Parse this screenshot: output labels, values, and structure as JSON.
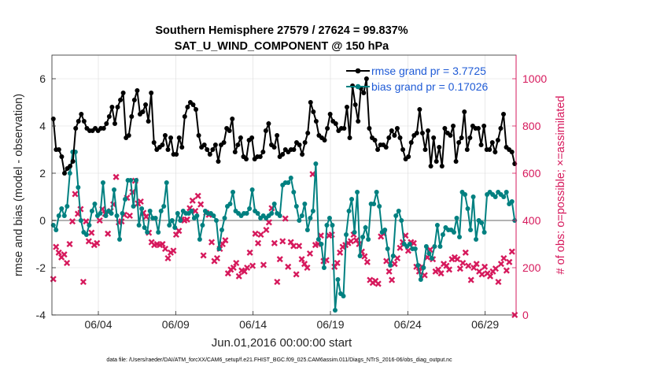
{
  "chart_data": {
    "type": "line",
    "title": "Southern Hemisphere 27579 / 27624 = 99.837%",
    "subtitle": "SAT_U_WIND_COMPONENT @ 150 hPa",
    "xlabel": "Jun.01,2016 00:00:00 start",
    "ylabel": "rmse and bias (model - observation)",
    "y2label": "# of obs: o=possible; ×=assimilated",
    "footer": "data file: /Users/raeder/DAI/ATM_forcXX/CAM6_setup/f.e21.FHIST_BGC.f09_025.CAM6assim.011/Diags_NTrS_2016-06/obs_diag_output.nc",
    "x_ticks": [
      {
        "label": "06/04",
        "day": 4
      },
      {
        "label": "06/09",
        "day": 9
      },
      {
        "label": "06/14",
        "day": 14
      },
      {
        "label": "06/19",
        "day": 19
      },
      {
        "label": "06/24",
        "day": 24
      },
      {
        "label": "06/29",
        "day": 29
      }
    ],
    "xlim_days": [
      1.0,
      31.0
    ],
    "ylim": [
      -4,
      7
    ],
    "y_ticks": [
      "-4",
      "-2",
      "0",
      "2",
      "4",
      "6"
    ],
    "y2lim": [
      0,
      1100
    ],
    "y2_ticks": [
      "0",
      "200",
      "400",
      "600",
      "800",
      "1000"
    ],
    "grid": true,
    "legend_placement": "top-right",
    "colors": {
      "rmse": "#000000",
      "bias": "#008080",
      "obs": "#d6195c",
      "zero_line": "#b3b3b3"
    },
    "series": [
      {
        "name": "rmse grand pr = 3.7725",
        "axis": "left",
        "values": [
          4.3,
          3.0,
          3.0,
          2.7,
          2.0,
          2.2,
          2.3,
          2.5,
          3.9,
          4.2,
          4.5,
          4.2,
          3.9,
          3.8,
          3.8,
          3.9,
          3.8,
          3.9,
          3.9,
          4.1,
          4.4,
          4.8,
          4.1,
          4.8,
          5.1,
          5.4,
          3.5,
          3.6,
          4.4,
          5.1,
          5.5,
          4.5,
          4.6,
          4.9,
          4.2,
          5.4,
          3.3,
          3.0,
          3.1,
          3.2,
          3.6,
          3.0,
          3.5,
          2.8,
          2.8,
          3.5,
          3.1,
          4.4,
          4.8,
          5.0,
          4.9,
          4.7,
          3.6,
          3.1,
          3.2,
          3.0,
          2.8,
          3.0,
          3.2,
          2.5,
          3.2,
          3.3,
          3.9,
          3.8,
          4.3,
          2.9,
          3.2,
          3.5,
          2.7,
          2.6,
          3.4,
          3.5,
          2.6,
          2.7,
          2.7,
          2.9,
          3.8,
          4.1,
          3.2,
          3.1,
          3.6,
          2.7,
          2.8,
          3.0,
          2.9,
          3.0,
          3.0,
          3.3,
          3.2,
          2.8,
          3.3,
          3.7,
          5.0,
          4.6,
          4.2,
          3.6,
          3.5,
          3.4,
          3.9,
          4.5,
          4.2,
          4.1,
          3.8,
          3.9,
          3.9,
          4.8,
          3.5,
          5.7,
          4.9,
          4.2,
          5.6,
          5.4,
          6.0,
          3.9,
          3.5,
          3.4,
          3.0,
          3.2,
          3.2,
          3.1,
          3.5,
          3.8,
          3.6,
          3.9,
          3.5,
          3.0,
          2.6,
          2.7,
          3.3,
          3.6,
          3.7,
          4.7,
          3.7,
          3.0,
          3.8,
          2.3,
          3.5,
          2.5,
          3.1,
          2.3,
          3.9,
          3.7,
          3.6,
          4.0,
          2.5,
          3.3,
          3.5,
          4.6,
          3.0,
          3.5,
          4.0,
          3.9,
          3.9,
          3.2,
          4.0,
          3.0,
          3.0,
          3.3,
          2.9,
          3.4,
          3.9,
          4.5,
          3.1,
          3.0,
          2.9,
          2.4
        ]
      },
      {
        "name": "bias grand pr = 0.17026",
        "axis": "left",
        "values": [
          -0.2,
          -0.4,
          0.2,
          0.5,
          0.2,
          0.6,
          2.0,
          2.9,
          2.9,
          1.4,
          0.0,
          -0.5,
          -0.6,
          -0.2,
          0.4,
          0.7,
          0.2,
          0.3,
          1.6,
          0.2,
          0.4,
          0.3,
          1.3,
          0.2,
          -0.8,
          0.3,
          0.9,
          1.7,
          1.7,
          0.6,
          1.7,
          -0.2,
          0.5,
          -0.3,
          -0.5,
          0.4,
          0.1,
          0.1,
          -0.5,
          0.4,
          0.6,
          1.6,
          -0.2,
          0.0,
          -0.3,
          0.3,
          0.0,
          0.4,
          0.3,
          0.3,
          0.4,
          0.1,
          0.2,
          -0.8,
          -0.2,
          0.4,
          0.3,
          0.3,
          0.2,
          0.0,
          -1.2,
          -0.4,
          0.1,
          0.6,
          0.7,
          1.2,
          0.4,
          0.3,
          0.2,
          0.3,
          0.3,
          0.5,
          1.3,
          0.4,
          0.3,
          0.1,
          0.2,
          0.1,
          0.2,
          0.3,
          0.7,
          0.3,
          0.2,
          1.5,
          1.6,
          1.6,
          1.8,
          1.2,
          0.6,
          0.0,
          0.2,
          0.7,
          -0.4,
          0.1,
          0.4,
          2.4,
          -0.8,
          -1.0,
          -2.0,
          -0.2,
          0.1,
          -0.2,
          -3.8,
          -2.5,
          -3.1,
          -3.2,
          -0.6,
          0.4,
          0.9,
          -0.5,
          1.2,
          -1.5,
          -0.7,
          -0.3,
          -0.8,
          0.7,
          0.7,
          1.2,
          0.6,
          -0.5,
          -0.4,
          -1.2,
          -1.9,
          -1.5,
          0.2,
          0.4,
          0.0,
          -1.0,
          -1.1,
          -1.0,
          -1.2,
          -1.2,
          -1.9,
          -2.5,
          -2.0,
          -1.1,
          -1.4,
          -1.6,
          -1.1,
          -0.2,
          -1.1,
          -0.6,
          -0.3,
          -0.4,
          -0.4,
          -0.5,
          0.1,
          -0.7,
          1.2,
          1.1,
          0.5,
          -0.4,
          1.0,
          -0.8,
          0.0,
          -0.1,
          -0.5,
          1.1,
          1.2,
          1.1,
          1.0,
          1.2,
          1.1,
          1.0,
          1.2,
          0.7,
          0.8,
          0.0
        ]
      },
      {
        "name": "possible",
        "axis": "right",
        "values": []
      },
      {
        "name": "assimilated",
        "axis": "right",
        "values": [
          152,
          288,
          264,
          244,
          256,
          220,
          300,
          396,
          512,
          428,
          448,
          140,
          396,
          312,
          348,
          296,
          304,
          400,
          448,
          428,
          344,
          440,
          468,
          584,
          392,
          396,
          424,
          496,
          420,
          520,
          568,
          472,
          480,
          432,
          416,
          348,
          308,
          296,
          300,
          296,
          300,
          280,
          240,
          264,
          272,
          340,
          356,
          404,
          400,
          404,
          452,
          484,
          440,
          504,
          468,
          252,
          432,
          424,
          308,
          228,
          240,
          280,
          300,
          316,
          176,
          192,
          200,
          220,
          164,
          188,
          184,
          200,
          264,
          208,
          344,
          304,
          340,
          212,
          360,
          392,
          452,
          304,
          140,
          236,
          312,
          408,
          204,
          308,
          292,
          172,
          292,
          236,
          216,
          200,
          260,
          596,
          296,
          300,
          336,
          228,
          232,
          336,
          340,
          204,
          220,
          264,
          288,
          296,
          304,
          312,
          340,
          316,
          300,
          268,
          248,
          224,
          148,
          136,
          144,
          132,
          332,
          344,
          228,
          184,
          148,
          216,
          240,
          284,
          308,
          336,
          272,
          308,
          304,
          204,
          184,
          204,
          168,
          244,
          276,
          236,
          184,
          192,
          176,
          216,
          208,
          192,
          236,
          244,
          236,
          196,
          220,
          264,
          208,
          148,
          200,
          216,
          184,
          172,
          204,
          176,
          164,
          184,
          196,
          140,
          216,
          240,
          188,
          224,
          268,
          0
        ]
      }
    ],
    "legend": [
      {
        "label": "rmse grand pr = 3.7725",
        "series": 0
      },
      {
        "label": "bias grand pr = 0.17026",
        "series": 1
      }
    ]
  }
}
